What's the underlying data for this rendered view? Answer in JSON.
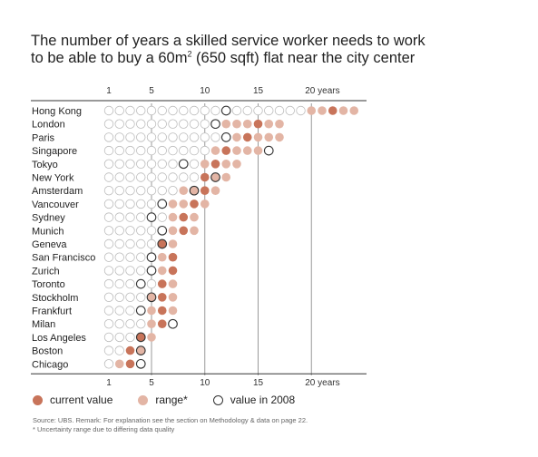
{
  "chart_data": {
    "type": "dot-range",
    "title_line1": "The number of years a skilled service worker needs to work",
    "title_line2_pre": "to be able to buy a 60m",
    "title_line2_sup": "2",
    "title_line2_post": " (650 sqft) flat near the city center",
    "x_ticks": [
      {
        "value": 1,
        "label": "1"
      },
      {
        "value": 5,
        "label": "5"
      },
      {
        "value": 10,
        "label": "10"
      },
      {
        "value": 15,
        "label": "15"
      },
      {
        "value": 20,
        "label": "20 years"
      }
    ],
    "max_years": 24,
    "cities": [
      {
        "name": "Hong Kong",
        "current": 22,
        "range": [
          20,
          24
        ],
        "y2008": 12
      },
      {
        "name": "London",
        "current": 15,
        "range": [
          12,
          17
        ],
        "y2008": 11
      },
      {
        "name": "Paris",
        "current": 14,
        "range": [
          13,
          17
        ],
        "y2008": 12
      },
      {
        "name": "Singapore",
        "current": 12,
        "range": [
          11,
          15
        ],
        "y2008": 16
      },
      {
        "name": "Tokyo",
        "current": 11,
        "range": [
          10,
          13
        ],
        "y2008": 8
      },
      {
        "name": "New York",
        "current": 10,
        "range": [
          10,
          12
        ],
        "y2008": 11
      },
      {
        "name": "Amsterdam",
        "current": 10,
        "range": [
          8,
          11
        ],
        "y2008": 9
      },
      {
        "name": "Vancouver",
        "current": 9,
        "range": [
          7,
          10
        ],
        "y2008": 6
      },
      {
        "name": "Sydney",
        "current": 8,
        "range": [
          7,
          9
        ],
        "y2008": 5
      },
      {
        "name": "Munich",
        "current": 8,
        "range": [
          7,
          9
        ],
        "y2008": 6
      },
      {
        "name": "Geneva",
        "current": 6,
        "range": [
          6,
          7
        ],
        "y2008": 6
      },
      {
        "name": "San Francisco",
        "current": 7,
        "range": [
          6,
          7
        ],
        "y2008": 5
      },
      {
        "name": "Zurich",
        "current": 7,
        "range": [
          6,
          7
        ],
        "y2008": 5
      },
      {
        "name": "Toronto",
        "current": 6,
        "range": [
          6,
          7
        ],
        "y2008": 4
      },
      {
        "name": "Stockholm",
        "current": 6,
        "range": [
          5,
          7
        ],
        "y2008": 5
      },
      {
        "name": "Frankfurt",
        "current": 6,
        "range": [
          5,
          7
        ],
        "y2008": 4
      },
      {
        "name": "Milan",
        "current": 6,
        "range": [
          5,
          6
        ],
        "y2008": 7
      },
      {
        "name": "Los Angeles",
        "current": 4,
        "range": [
          4,
          5
        ],
        "y2008": 4
      },
      {
        "name": "Boston",
        "current": 3,
        "range": [
          3,
          4
        ],
        "y2008": 4
      },
      {
        "name": "Chicago",
        "current": 3,
        "range": [
          2,
          3
        ],
        "y2008": 4
      }
    ],
    "colors": {
      "current": "#c8745a",
      "range": "#e3b5a5",
      "empty_stroke": "#bcbcbc",
      "y2008_stroke": "#333333",
      "grid": "#9a9a9a"
    }
  },
  "legend": {
    "current_label": "current value",
    "range_label": "range*",
    "y2008_label": "value in 2008"
  },
  "footer": {
    "source": "Source: UBS. Remark: For explanation see the section on Methodology & data on page 22.",
    "note": "* Uncertainty range due to differing data quality"
  }
}
